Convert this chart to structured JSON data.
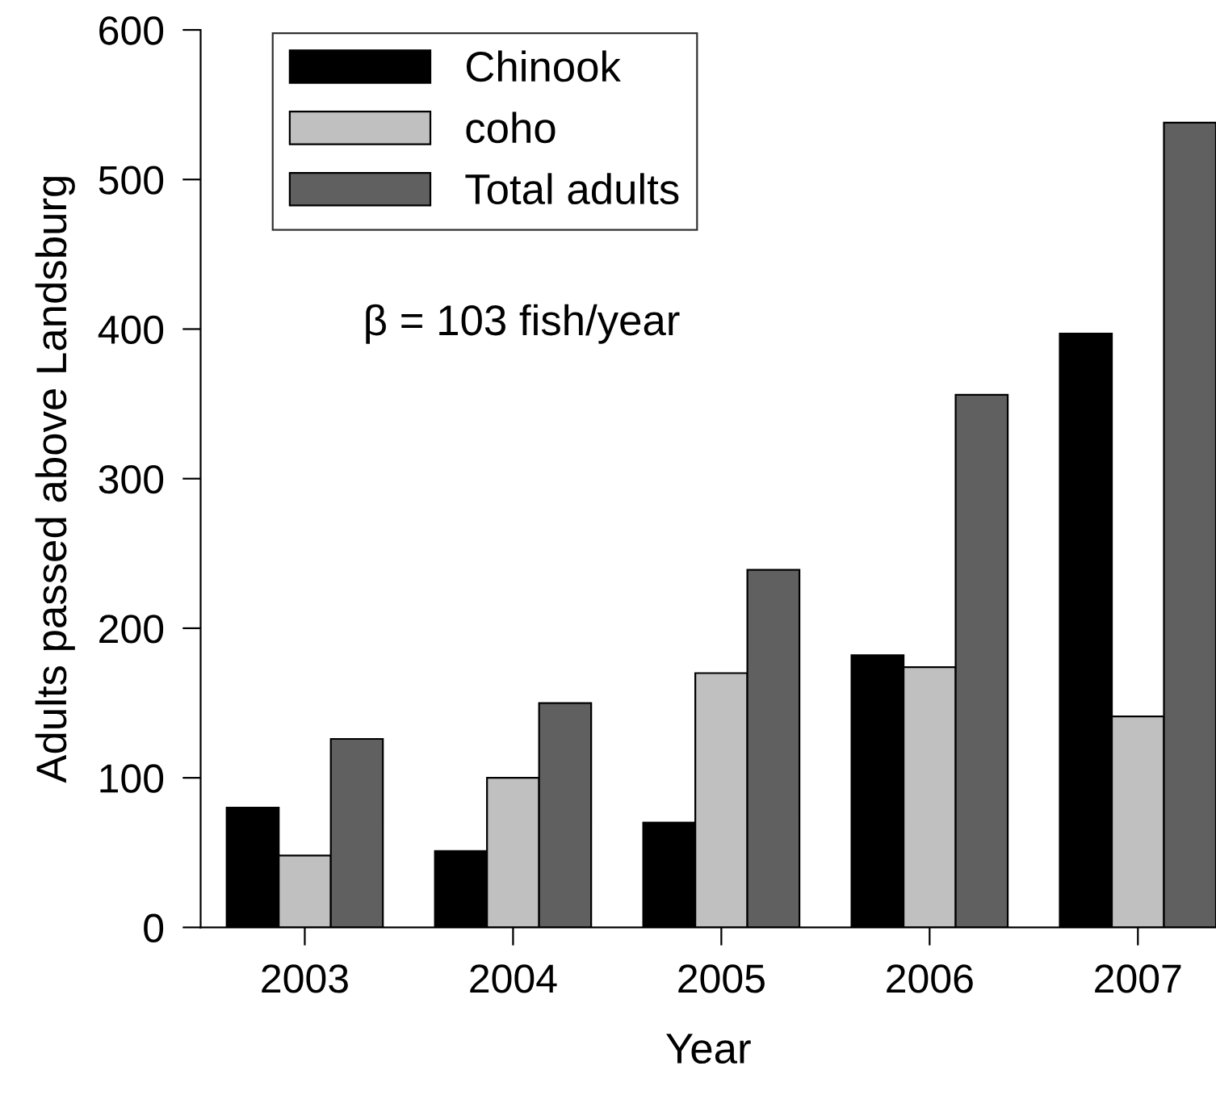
{
  "chart_data": {
    "type": "bar",
    "xlabel": "Year",
    "ylabel": "Adults passed above Landsburg",
    "categories": [
      "2003",
      "2004",
      "2005",
      "2006",
      "2007"
    ],
    "series": [
      {
        "name": "Chinook",
        "color": "#000000",
        "values": [
          80,
          51,
          70,
          182,
          397
        ]
      },
      {
        "name": "coho",
        "color": "#c0c0c0",
        "values": [
          48,
          100,
          170,
          174,
          141
        ]
      },
      {
        "name": "Total adults",
        "color": "#606060",
        "values": [
          126,
          150,
          239,
          356,
          538
        ]
      }
    ],
    "ylim": [
      0,
      600
    ],
    "yticks": [
      0,
      100,
      200,
      300,
      400,
      500,
      600
    ],
    "annotations": [
      "β = 103 fish/year"
    ],
    "legend": "top left",
    "grid": false
  }
}
